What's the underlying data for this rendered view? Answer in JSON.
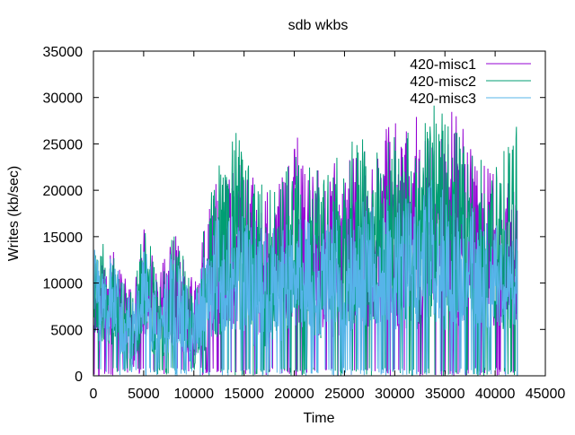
{
  "chart_data": {
    "type": "line",
    "title": "sdb wkbs",
    "xlabel": "Time",
    "ylabel": "Writes (kb/sec)",
    "xlim": [
      0,
      45000
    ],
    "ylim": [
      0,
      35000
    ],
    "xticks": [
      0,
      5000,
      10000,
      15000,
      20000,
      25000,
      30000,
      35000,
      40000,
      45000
    ],
    "yticks": [
      0,
      5000,
      10000,
      15000,
      20000,
      25000,
      30000,
      35000
    ],
    "xtick_labels": [
      "0",
      "5000",
      "10000",
      "15000",
      "20000",
      "25000",
      "30000",
      "35000",
      "40000",
      "45000"
    ],
    "ytick_labels": [
      "0",
      "5000",
      "10000",
      "15000",
      "20000",
      "25000",
      "30000",
      "35000"
    ],
    "grid": false,
    "legend_position": "top-right",
    "series": [
      {
        "name": "420-misc1",
        "color": "#9400d3",
        "x_range": [
          0,
          42200
        ],
        "envelope": [
          {
            "x": 0,
            "base": 4000,
            "peak": 11500
          },
          {
            "x": 2000,
            "base": 3000,
            "peak": 13500
          },
          {
            "x": 4000,
            "base": 500,
            "peak": 9000
          },
          {
            "x": 5000,
            "base": 4500,
            "peak": 16000
          },
          {
            "x": 6500,
            "base": 1000,
            "peak": 11000
          },
          {
            "x": 8000,
            "base": 3000,
            "peak": 15500
          },
          {
            "x": 10000,
            "base": 1000,
            "peak": 11000
          },
          {
            "x": 12000,
            "base": 4000,
            "peak": 21500
          },
          {
            "x": 14000,
            "base": 5000,
            "peak": 23000
          },
          {
            "x": 16000,
            "base": 3000,
            "peak": 22000
          },
          {
            "x": 18000,
            "base": 3000,
            "peak": 19000
          },
          {
            "x": 20000,
            "base": 5000,
            "peak": 26500
          },
          {
            "x": 22000,
            "base": 4000,
            "peak": 22000
          },
          {
            "x": 24000,
            "base": 4000,
            "peak": 23000
          },
          {
            "x": 26000,
            "base": 5000,
            "peak": 24000
          },
          {
            "x": 28000,
            "base": 5000,
            "peak": 25000
          },
          {
            "x": 30000,
            "base": 5000,
            "peak": 28500
          },
          {
            "x": 32000,
            "base": 5000,
            "peak": 28000
          },
          {
            "x": 34000,
            "base": 5000,
            "peak": 27000
          },
          {
            "x": 36000,
            "base": 5000,
            "peak": 30000
          },
          {
            "x": 38000,
            "base": 5000,
            "peak": 24000
          },
          {
            "x": 40000,
            "base": 5000,
            "peak": 22000
          },
          {
            "x": 42200,
            "base": 5000,
            "peak": 20000
          }
        ]
      },
      {
        "name": "420-misc2",
        "color": "#009e73",
        "x_range": [
          0,
          42200
        ],
        "envelope": [
          {
            "x": 0,
            "base": 4000,
            "peak": 15500
          },
          {
            "x": 2000,
            "base": 3000,
            "peak": 13500
          },
          {
            "x": 4000,
            "base": 500,
            "peak": 9000
          },
          {
            "x": 5000,
            "base": 4500,
            "peak": 17500
          },
          {
            "x": 6500,
            "base": 1000,
            "peak": 10000
          },
          {
            "x": 8000,
            "base": 3000,
            "peak": 16000
          },
          {
            "x": 10000,
            "base": 1000,
            "peak": 10000
          },
          {
            "x": 12000,
            "base": 4000,
            "peak": 22000
          },
          {
            "x": 14000,
            "base": 5000,
            "peak": 27000
          },
          {
            "x": 16000,
            "base": 3000,
            "peak": 21000
          },
          {
            "x": 18000,
            "base": 3000,
            "peak": 20000
          },
          {
            "x": 20000,
            "base": 5000,
            "peak": 24000
          },
          {
            "x": 22000,
            "base": 4000,
            "peak": 22000
          },
          {
            "x": 24000,
            "base": 4000,
            "peak": 24000
          },
          {
            "x": 26000,
            "base": 5000,
            "peak": 26000
          },
          {
            "x": 28000,
            "base": 5000,
            "peak": 25000
          },
          {
            "x": 30000,
            "base": 5000,
            "peak": 27000
          },
          {
            "x": 32000,
            "base": 5000,
            "peak": 26000
          },
          {
            "x": 34000,
            "base": 5000,
            "peak": 30500
          },
          {
            "x": 36000,
            "base": 5000,
            "peak": 27000
          },
          {
            "x": 38000,
            "base": 5000,
            "peak": 24000
          },
          {
            "x": 40000,
            "base": 5000,
            "peak": 23000
          },
          {
            "x": 42200,
            "base": 5000,
            "peak": 27000
          }
        ]
      },
      {
        "name": "420-misc3",
        "color": "#56b4e9",
        "x_range": [
          0,
          42200
        ],
        "envelope": [
          {
            "x": 0,
            "base": 4000,
            "peak": 15000
          },
          {
            "x": 2000,
            "base": 3000,
            "peak": 12500
          },
          {
            "x": 4000,
            "base": 500,
            "peak": 8000
          },
          {
            "x": 5000,
            "base": 4500,
            "peak": 15000
          },
          {
            "x": 6500,
            "base": 1000,
            "peak": 9000
          },
          {
            "x": 8000,
            "base": 3000,
            "peak": 14500
          },
          {
            "x": 10000,
            "base": 1000,
            "peak": 9000
          },
          {
            "x": 12000,
            "base": 4000,
            "peak": 17000
          },
          {
            "x": 14000,
            "base": 5000,
            "peak": 18000
          },
          {
            "x": 16000,
            "base": 3000,
            "peak": 17000
          },
          {
            "x": 18000,
            "base": 3000,
            "peak": 16000
          },
          {
            "x": 20000,
            "base": 5000,
            "peak": 18000
          },
          {
            "x": 22000,
            "base": 4000,
            "peak": 17000
          },
          {
            "x": 24000,
            "base": 4000,
            "peak": 18000
          },
          {
            "x": 26000,
            "base": 5000,
            "peak": 19000
          },
          {
            "x": 28000,
            "base": 5000,
            "peak": 18500
          },
          {
            "x": 30000,
            "base": 5000,
            "peak": 20000
          },
          {
            "x": 32000,
            "base": 5000,
            "peak": 19000
          },
          {
            "x": 34000,
            "base": 5000,
            "peak": 22000
          },
          {
            "x": 36000,
            "base": 5000,
            "peak": 20000
          },
          {
            "x": 38000,
            "base": 5000,
            "peak": 18000
          },
          {
            "x": 40000,
            "base": 5000,
            "peak": 17000
          },
          {
            "x": 42200,
            "base": 5000,
            "peak": 16000
          }
        ]
      }
    ]
  }
}
